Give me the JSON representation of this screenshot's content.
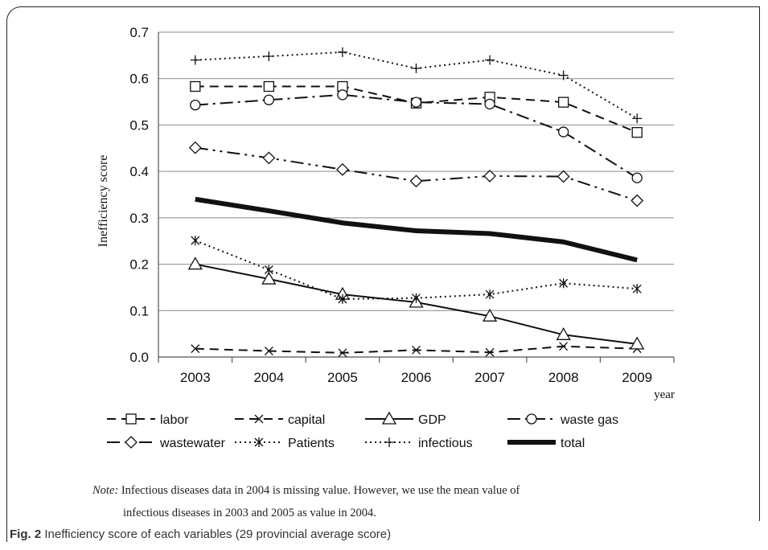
{
  "chart_data": {
    "type": "line",
    "title": "",
    "xlabel": "year",
    "ylabel": "Inefficiency score",
    "ylim": [
      0,
      0.7
    ],
    "yticks": [
      "0.0",
      "0.1",
      "0.2",
      "0.3",
      "0.4",
      "0.5",
      "0.6",
      "0.7"
    ],
    "grid": "horizontal",
    "legend_position": "bottom",
    "categories": [
      "2003",
      "2004",
      "2005",
      "2006",
      "2007",
      "2008",
      "2009"
    ],
    "series": [
      {
        "name": "labor",
        "marker": "square",
        "dash": "dash",
        "width": 2,
        "values": [
          0.583,
          0.583,
          0.583,
          0.547,
          0.56,
          0.549,
          0.484
        ]
      },
      {
        "name": "capital",
        "marker": "x",
        "dash": "dash",
        "width": 2,
        "values": [
          0.018,
          0.013,
          0.009,
          0.015,
          0.01,
          0.023,
          0.018
        ]
      },
      {
        "name": "GDP",
        "marker": "triangle",
        "dash": "solid",
        "width": 2,
        "values": [
          0.2,
          0.168,
          0.135,
          0.118,
          0.088,
          0.048,
          0.028
        ]
      },
      {
        "name": "waste gas",
        "marker": "circle",
        "dash": "dashdot",
        "width": 2,
        "values": [
          0.543,
          0.554,
          0.565,
          0.549,
          0.545,
          0.485,
          0.386
        ]
      },
      {
        "name": "wastewater",
        "marker": "diamond",
        "dash": "dashdotdot",
        "width": 2,
        "values": [
          0.451,
          0.429,
          0.404,
          0.379,
          0.39,
          0.389,
          0.337
        ]
      },
      {
        "name": "Patients",
        "marker": "asterisk",
        "dash": "dot",
        "width": 2,
        "values": [
          0.251,
          0.188,
          0.125,
          0.127,
          0.135,
          0.159,
          0.147
        ]
      },
      {
        "name": "infectious",
        "marker": "plus",
        "dash": "dot",
        "width": 2,
        "values": [
          0.64,
          0.648,
          0.657,
          0.622,
          0.64,
          0.607,
          0.514
        ]
      },
      {
        "name": "total",
        "marker": "none",
        "dash": "solid",
        "width": 6,
        "values": [
          0.34,
          0.315,
          0.289,
          0.272,
          0.266,
          0.248,
          0.209
        ]
      }
    ]
  },
  "note": {
    "label": "Note:",
    "line1": "Infectious diseases data in 2004 is missing value. However, we use the mean value of",
    "line2": "infectious diseases in 2003 and 2005 as value in 2004."
  },
  "caption": {
    "fig_label": "Fig. 2",
    "text": "Inefficiency score of each variables (29 provincial average score)"
  }
}
